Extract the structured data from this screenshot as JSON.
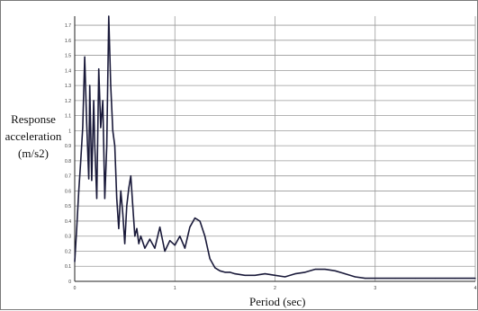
{
  "chart_data": {
    "type": "line",
    "title": "",
    "xlabel": "Period (sec)",
    "ylabel_lines": [
      "Response",
      "acceleration",
      "(m/s2)"
    ],
    "xlim": [
      0,
      4
    ],
    "ylim": [
      0,
      1.76
    ],
    "x_ticks": [
      "0",
      "1",
      "2",
      "3",
      "4"
    ],
    "y_ticks": [
      "0",
      "0.1",
      "0.2",
      "0.3",
      "0.4",
      "0.5",
      "0.6",
      "0.7",
      "0.8",
      "0.9",
      "1",
      "1.1",
      "1.2",
      "1.3",
      "1.4",
      "1.5",
      "1.6",
      "1.7"
    ],
    "grid": true,
    "line_color": "#1a1a3a",
    "series": [
      {
        "x": [
          0.0,
          0.02,
          0.04,
          0.06,
          0.08,
          0.1,
          0.12,
          0.14,
          0.15,
          0.17,
          0.19,
          0.2,
          0.22,
          0.24,
          0.26,
          0.28,
          0.3,
          0.32,
          0.34,
          0.36,
          0.38,
          0.4,
          0.42,
          0.44,
          0.46,
          0.48,
          0.5,
          0.52,
          0.54,
          0.56,
          0.58,
          0.6,
          0.62,
          0.64,
          0.66,
          0.7,
          0.75,
          0.8,
          0.85,
          0.9,
          0.95,
          1.0,
          1.05,
          1.1,
          1.15,
          1.2,
          1.25,
          1.3,
          1.35,
          1.4,
          1.45,
          1.5,
          1.55,
          1.6,
          1.7,
          1.8,
          1.9,
          2.0,
          2.1,
          2.2,
          2.3,
          2.4,
          2.5,
          2.6,
          2.7,
          2.8,
          2.9,
          3.0,
          3.2,
          3.4,
          3.6,
          3.8,
          4.0
        ],
        "y": [
          0.13,
          0.35,
          0.6,
          0.8,
          1.02,
          1.49,
          1.05,
          0.68,
          1.3,
          0.67,
          1.2,
          0.9,
          0.55,
          1.41,
          1.02,
          1.2,
          0.55,
          0.9,
          1.76,
          1.3,
          1.0,
          0.9,
          0.55,
          0.35,
          0.6,
          0.45,
          0.25,
          0.5,
          0.62,
          0.7,
          0.5,
          0.3,
          0.35,
          0.25,
          0.3,
          0.22,
          0.28,
          0.22,
          0.36,
          0.2,
          0.27,
          0.24,
          0.3,
          0.22,
          0.36,
          0.42,
          0.4,
          0.3,
          0.15,
          0.09,
          0.07,
          0.06,
          0.06,
          0.05,
          0.04,
          0.04,
          0.05,
          0.04,
          0.03,
          0.05,
          0.06,
          0.08,
          0.08,
          0.07,
          0.05,
          0.03,
          0.02,
          0.02,
          0.02,
          0.02,
          0.02,
          0.02,
          0.02
        ]
      }
    ]
  }
}
